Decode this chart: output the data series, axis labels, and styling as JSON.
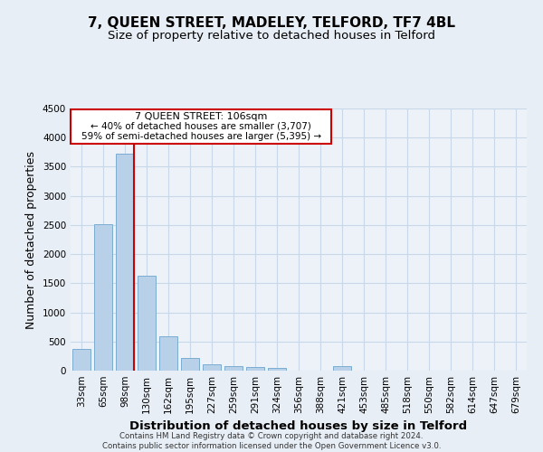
{
  "title": "7, QUEEN STREET, MADELEY, TELFORD, TF7 4BL",
  "subtitle": "Size of property relative to detached houses in Telford",
  "xlabel": "Distribution of detached houses by size in Telford",
  "ylabel": "Number of detached properties",
  "footer_line1": "Contains HM Land Registry data © Crown copyright and database right 2024.",
  "footer_line2": "Contains public sector information licensed under the Open Government Licence v3.0.",
  "categories": [
    "33sqm",
    "65sqm",
    "98sqm",
    "130sqm",
    "162sqm",
    "195sqm",
    "227sqm",
    "259sqm",
    "291sqm",
    "324sqm",
    "356sqm",
    "388sqm",
    "421sqm",
    "453sqm",
    "485sqm",
    "518sqm",
    "550sqm",
    "582sqm",
    "614sqm",
    "647sqm",
    "679sqm"
  ],
  "values": [
    370,
    2510,
    3720,
    1630,
    590,
    225,
    110,
    75,
    55,
    40,
    0,
    0,
    70,
    0,
    0,
    0,
    0,
    0,
    0,
    0,
    0
  ],
  "bar_color": "#b8d0e8",
  "bar_edgecolor": "#7badd1",
  "grid_color": "#c8d8e8",
  "background_color": "#e8eef6",
  "plot_background": "#edf2f8",
  "ylim": [
    0,
    4500
  ],
  "yticks": [
    0,
    500,
    1000,
    1500,
    2000,
    2500,
    3000,
    3500,
    4000,
    4500
  ],
  "property_label": "7 QUEEN STREET: 106sqm",
  "annotation_line1": "← 40% of detached houses are smaller (3,707)",
  "annotation_line2": "59% of semi-detached houses are larger (5,395) →",
  "vline_color": "#cc0000",
  "annotation_box_edgecolor": "#cc0000",
  "title_fontsize": 11,
  "subtitle_fontsize": 9.5,
  "axis_label_fontsize": 9,
  "tick_fontsize": 7.5,
  "vline_x": 2.4
}
